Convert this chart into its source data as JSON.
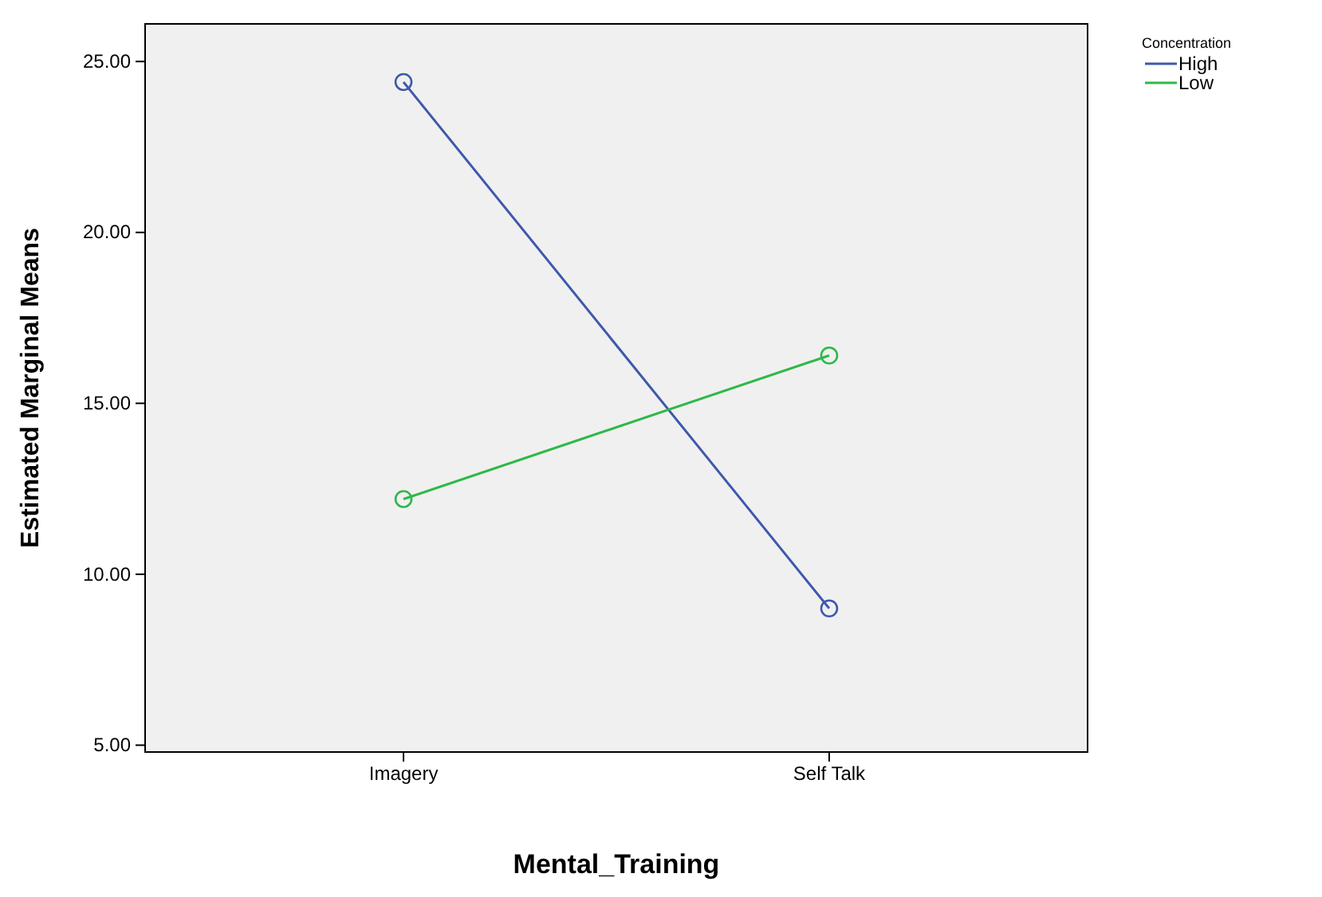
{
  "chart_data": {
    "type": "line",
    "xlabel": "Mental_Training",
    "ylabel": "Estimated Marginal Means",
    "legend_title": "Concentration",
    "categories": [
      "Imagery",
      "Self Talk"
    ],
    "series": [
      {
        "name": "High",
        "color": "#3e58ac",
        "values": [
          24.4,
          9.0
        ]
      },
      {
        "name": "Low",
        "color": "#2eb848",
        "values": [
          12.2,
          16.4
        ]
      }
    ],
    "ylim": [
      4.8,
      26.1
    ],
    "yticks": [
      {
        "value": 5,
        "label": "5.00"
      },
      {
        "value": 10,
        "label": "10.00"
      },
      {
        "value": 15,
        "label": "15.00"
      },
      {
        "value": 20,
        "label": "20.00"
      },
      {
        "value": 25,
        "label": "25.00"
      }
    ],
    "grid": false,
    "legend": "top right",
    "marker": "circle",
    "line_style": "solid"
  }
}
